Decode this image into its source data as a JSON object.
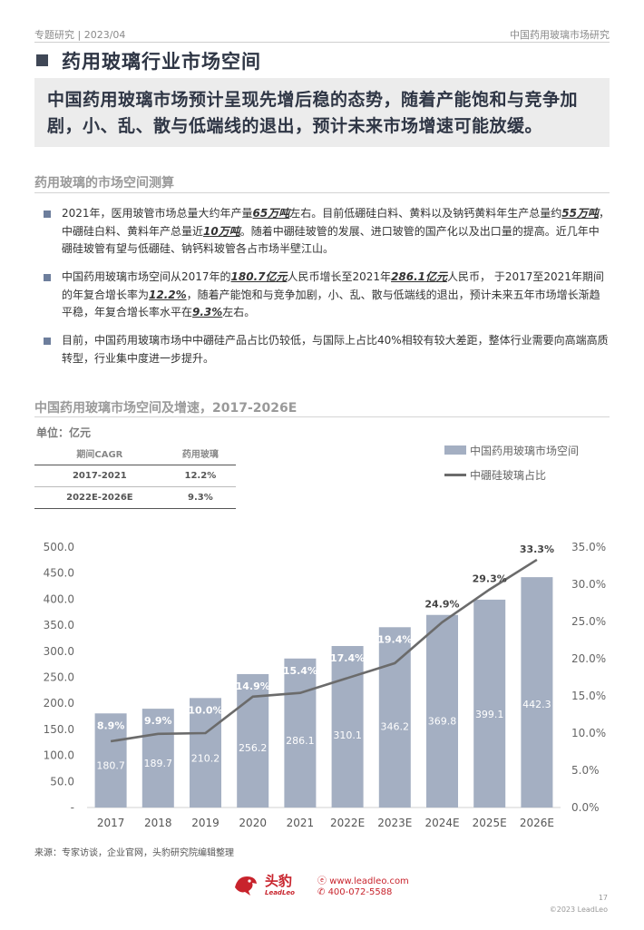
{
  "header": {
    "left": "专题研究 |  2023/04",
    "right": "中国药用玻璃市场研究"
  },
  "title": "药用玻璃行业市场空间",
  "summary": "中国药用玻璃市场预计呈现先增后稳的态势，随着产能饱和与竞争加剧，小、乱、散与低端线的退出，预计未来市场增速可能放缓。",
  "section_title": "药用玻璃的市场空间测算",
  "bullets": {
    "b1": {
      "t1": "2021年，医用玻管市场总量大约年产量",
      "e1": "65万吨",
      "t2": "左右。目前低硼硅白料、黄料以及钠钙黄料年生产总量约",
      "e2": "55万吨",
      "t3": "，中硼硅白料、黄料年产总量近",
      "e3": "10万吨",
      "t4": "。随着中硼硅玻管的发展、进口玻管的国产化以及出口量的提高。近几年中硼硅玻管有望与低硼硅、钠钙料玻管各占市场半壁江山。"
    },
    "b2": {
      "t1": "中国药用玻璃市场空间从2017年的",
      "e1": "180.7亿元",
      "t2": "人民币增长至2021年",
      "e2": "286.1亿元",
      "t3": "人民币， 于2017至2021年期间的年复合增长率为",
      "e3": "12.2%",
      "t4": "，随着产能饱和与竞争加剧，小、乱、散与低端线的退出，预计未来五年市场增长渐趋平稳，年复合增长率水平在",
      "e4": "9.3%",
      "t5": "左右。"
    },
    "b3": "目前，中国药用玻璃市场中中硼硅产品占比仍较低，与国际上占比40%相较有较大差距，整体行业需要向高端高质转型，行业集中度进一步提升。"
  },
  "chart_section_title": "中国药用玻璃市场空间及增速，2017-2026E",
  "unit_label": "单位：亿元",
  "cagr_table": {
    "headers": [
      "期间CAGR",
      "药用玻璃"
    ],
    "rows": [
      [
        "2017-2021",
        "12.2%"
      ],
      [
        "2022E-2026E",
        "9.3%"
      ]
    ]
  },
  "chart_data": {
    "type": "bar",
    "categories": [
      "2017",
      "2018",
      "2019",
      "2020",
      "2021",
      "2022E",
      "2023E",
      "2024E",
      "2025E",
      "2026E"
    ],
    "series": [
      {
        "name": "中国药用玻璃市场空间",
        "type": "bar",
        "axis": "left",
        "values": [
          180.7,
          189.7,
          210.2,
          256.2,
          286.1,
          310.1,
          346.2,
          369.8,
          399.1,
          442.3
        ]
      },
      {
        "name": "中硼硅玻璃占比",
        "type": "line",
        "axis": "right",
        "values": [
          8.9,
          9.9,
          10.0,
          14.9,
          15.4,
          17.4,
          19.4,
          24.9,
          29.3,
          33.3
        ]
      }
    ],
    "left_ticks": [
      "500.0",
      "450.0",
      "400.0",
      "350.0",
      "300.0",
      "250.0",
      "200.0",
      "150.0",
      "100.0",
      "50.0",
      "-"
    ],
    "right_ticks": [
      "35.0%",
      "30.0%",
      "25.0%",
      "20.0%",
      "15.0%",
      "10.0%",
      "5.0%",
      "0.0%"
    ],
    "ylim_left": [
      0,
      500
    ],
    "ylim_right": [
      0,
      35
    ],
    "legend_position": "top-right",
    "bar_color": "#a4afc2",
    "line_color": "#6b6b6b"
  },
  "source": "来源：专家访谈，企业官网，头豹研究院编辑整理",
  "footer": {
    "brand_cn": "头豹",
    "brand_en": "LeadLeo",
    "website": "www.leadleo.com",
    "phone": "400-072-5588",
    "page": "17",
    "copyright": "©2023 LeadLeo"
  }
}
